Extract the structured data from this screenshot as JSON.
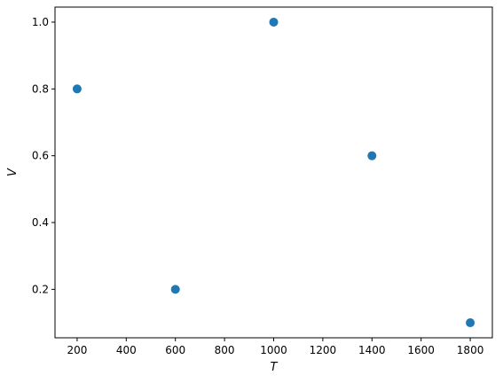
{
  "chart_data": {
    "type": "scatter",
    "title": "",
    "xlabel": "T",
    "ylabel": "V",
    "xlim": [
      110,
      1890
    ],
    "ylim": [
      0.055,
      1.045
    ],
    "xticks": [
      200,
      400,
      600,
      800,
      1000,
      1200,
      1400,
      1600,
      1800
    ],
    "yticks": [
      0.2,
      0.4,
      0.6,
      0.8,
      1.0
    ],
    "ytick_labels": [
      "0.2",
      "0.4",
      "0.6",
      "0.8",
      "1.0"
    ],
    "grid": false,
    "series": [
      {
        "color": "#1f77b4",
        "points": [
          {
            "x": 200,
            "y": 0.8
          },
          {
            "x": 600,
            "y": 0.2
          },
          {
            "x": 1000,
            "y": 1.0
          },
          {
            "x": 1400,
            "y": 0.6
          },
          {
            "x": 1800,
            "y": 0.1
          }
        ]
      }
    ]
  }
}
